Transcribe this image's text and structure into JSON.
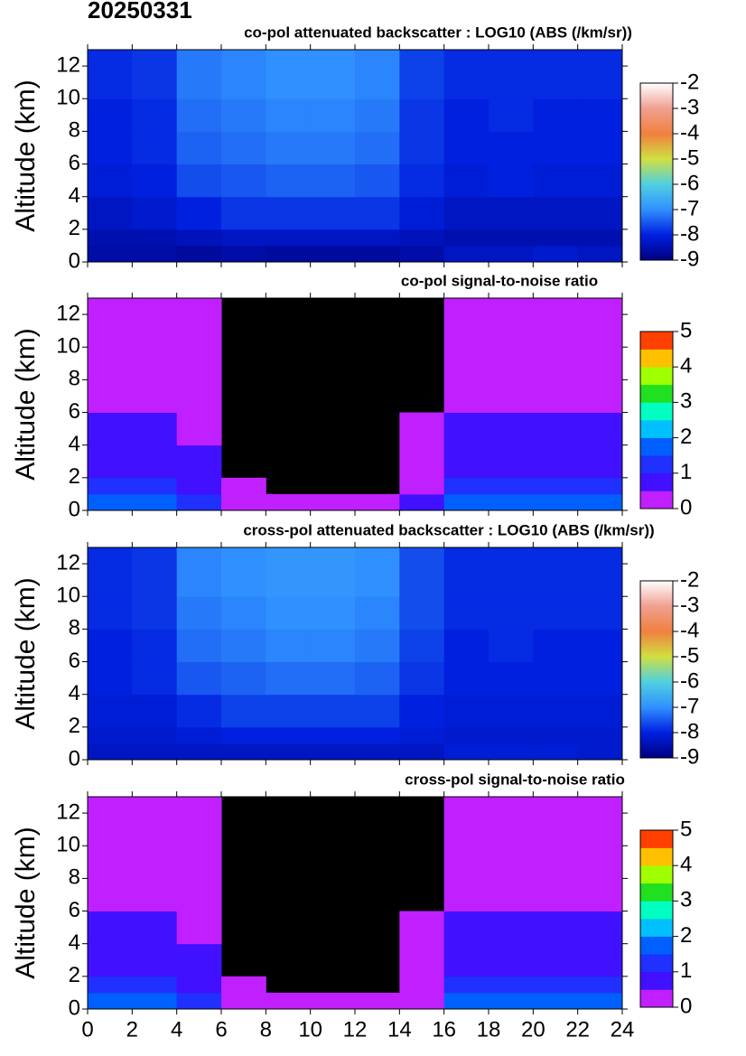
{
  "title": "20250331",
  "chart_data": [
    {
      "type": "heatmap",
      "title": "co-pol attenuated backscatter : LOG10 (ABS (/km/sr))",
      "ylabel": "Altitude (km)",
      "xlim": [
        0,
        24
      ],
      "xticks": [
        0,
        2,
        4,
        6,
        8,
        10,
        12,
        14,
        16,
        18,
        20,
        22,
        24
      ],
      "show_xtick_labels": false,
      "ylim": [
        0,
        13
      ],
      "yticks": [
        0,
        2,
        4,
        6,
        8,
        10,
        12
      ],
      "xbins": [
        0,
        2,
        4,
        6,
        8,
        10,
        12,
        14,
        16,
        18,
        20,
        22,
        24
      ],
      "ybins": [
        0,
        1,
        2,
        4,
        6,
        8,
        10,
        13
      ],
      "z": [
        [
          -8.6,
          -8.6,
          -8.7,
          -8.6,
          -8.7,
          -8.7,
          -8.7,
          -8.6,
          -8.3,
          -8.3,
          -8.2,
          -8.3
        ],
        [
          -8.5,
          -8.5,
          -8.4,
          -8.3,
          -8.3,
          -8.3,
          -8.3,
          -8.4,
          -8.5,
          -8.5,
          -8.5,
          -8.5
        ],
        [
          -8.3,
          -8.2,
          -8.0,
          -7.8,
          -7.8,
          -7.8,
          -7.8,
          -8.1,
          -8.3,
          -8.3,
          -8.3,
          -8.3
        ],
        [
          -8.1,
          -8.0,
          -7.6,
          -7.5,
          -7.4,
          -7.4,
          -7.5,
          -7.9,
          -8.1,
          -8.0,
          -8.1,
          -8.1
        ],
        [
          -8.0,
          -7.9,
          -7.4,
          -7.3,
          -7.2,
          -7.2,
          -7.3,
          -7.8,
          -8.0,
          -8.0,
          -8.0,
          -8.0
        ],
        [
          -8.0,
          -7.9,
          -7.3,
          -7.2,
          -7.1,
          -7.1,
          -7.2,
          -7.8,
          -8.0,
          -7.9,
          -8.0,
          -8.0
        ],
        [
          -7.9,
          -7.8,
          -7.2,
          -7.1,
          -7.0,
          -7.0,
          -7.1,
          -7.7,
          -7.9,
          -7.9,
          -7.9,
          -7.9
        ]
      ],
      "colorbar": {
        "lim": [
          -9,
          -2
        ],
        "ticks": [
          -9,
          -8,
          -7,
          -6,
          -5,
          -4,
          -3,
          -2
        ],
        "discrete": false,
        "colors": [
          "#000080",
          "#0020e0",
          "#3090ff",
          "#50d0e0",
          "#d0e040",
          "#f08040",
          "#f0a090",
          "#ffffff"
        ]
      }
    },
    {
      "type": "heatmap",
      "title": "co-pol signal-to-noise ratio",
      "ylabel": "Altitude (km)",
      "xlim": [
        0,
        24
      ],
      "xticks": [
        0,
        2,
        4,
        6,
        8,
        10,
        12,
        14,
        16,
        18,
        20,
        22,
        24
      ],
      "show_xtick_labels": false,
      "ylim": [
        0,
        13
      ],
      "yticks": [
        0,
        2,
        4,
        6,
        8,
        10,
        12
      ],
      "xbins": [
        0,
        2,
        4,
        6,
        8,
        10,
        12,
        14,
        16,
        18,
        20,
        22,
        24
      ],
      "ybins": [
        0,
        1,
        2,
        4,
        6,
        8,
        10,
        13
      ],
      "z": [
        [
          1.6,
          1.6,
          1.2,
          0.4,
          0.3,
          0.3,
          0.3,
          0.5,
          1.6,
          1.7,
          1.7,
          1.7
        ],
        [
          1.1,
          1.1,
          0.8,
          0.3,
          null,
          null,
          null,
          0.3,
          1.1,
          1.1,
          1.1,
          1.1
        ],
        [
          0.9,
          0.9,
          0.6,
          null,
          null,
          null,
          null,
          0.2,
          0.9,
          0.9,
          0.9,
          0.9
        ],
        [
          0.5,
          0.5,
          0.4,
          null,
          null,
          null,
          null,
          0.2,
          0.5,
          0.5,
          0.5,
          0.5
        ],
        [
          0.3,
          0.3,
          0.2,
          null,
          null,
          null,
          null,
          null,
          0.3,
          0.3,
          0.3,
          0.3
        ],
        [
          0.3,
          0.3,
          0.2,
          null,
          null,
          null,
          null,
          null,
          0.3,
          0.3,
          0.3,
          0.3
        ],
        [
          0.2,
          0.2,
          0.2,
          null,
          null,
          null,
          null,
          null,
          0.2,
          0.2,
          0.2,
          0.2
        ]
      ],
      "colorbar": {
        "lim": [
          0,
          5
        ],
        "ticks": [
          0,
          1,
          2,
          3,
          4,
          5
        ],
        "discrete": true,
        "colors": [
          "#c020ff",
          "#4010ff",
          "#2030ff",
          "#0060ff",
          "#00c0ff",
          "#00ffc0",
          "#20e020",
          "#a0ff00",
          "#ffc000",
          "#ff4000"
        ]
      }
    },
    {
      "type": "heatmap",
      "title": "cross-pol attenuated backscatter : LOG10 (ABS (/km/sr))",
      "ylabel": "Altitude (km)",
      "xlim": [
        0,
        24
      ],
      "xticks": [
        0,
        2,
        4,
        6,
        8,
        10,
        12,
        14,
        16,
        18,
        20,
        22,
        24
      ],
      "show_xtick_labels": false,
      "ylim": [
        0,
        13
      ],
      "yticks": [
        0,
        2,
        4,
        6,
        8,
        10,
        12
      ],
      "xbins": [
        0,
        2,
        4,
        6,
        8,
        10,
        12,
        14,
        16,
        18,
        20,
        22,
        24
      ],
      "ybins": [
        0,
        1,
        2,
        4,
        6,
        8,
        10,
        13
      ],
      "z": [
        [
          -8.3,
          -8.3,
          -8.3,
          -8.3,
          -8.3,
          -8.3,
          -8.3,
          -8.3,
          -8.1,
          -8.1,
          -8.1,
          -8.2
        ],
        [
          -8.2,
          -8.2,
          -8.1,
          -8.0,
          -8.0,
          -8.0,
          -8.0,
          -8.1,
          -8.2,
          -8.2,
          -8.2,
          -8.2
        ],
        [
          -8.1,
          -8.1,
          -7.9,
          -7.7,
          -7.7,
          -7.7,
          -7.7,
          -8.0,
          -8.1,
          -8.1,
          -8.1,
          -8.1
        ],
        [
          -8.0,
          -7.9,
          -7.5,
          -7.4,
          -7.3,
          -7.3,
          -7.4,
          -7.8,
          -8.0,
          -8.0,
          -8.0,
          -8.0
        ],
        [
          -8.0,
          -7.9,
          -7.3,
          -7.2,
          -7.1,
          -7.1,
          -7.2,
          -7.7,
          -8.0,
          -7.9,
          -8.0,
          -8.0
        ],
        [
          -7.9,
          -7.8,
          -7.2,
          -7.1,
          -7.0,
          -7.0,
          -7.1,
          -7.6,
          -7.9,
          -7.9,
          -7.9,
          -7.9
        ],
        [
          -7.9,
          -7.8,
          -7.1,
          -7.0,
          -6.9,
          -6.9,
          -7.0,
          -7.6,
          -7.9,
          -7.9,
          -7.9,
          -7.9
        ]
      ],
      "colorbar": {
        "lim": [
          -9,
          -2
        ],
        "ticks": [
          -9,
          -8,
          -7,
          -6,
          -5,
          -4,
          -3,
          -2
        ],
        "discrete": false,
        "colors": [
          "#000080",
          "#0020e0",
          "#3090ff",
          "#50d0e0",
          "#d0e040",
          "#f08040",
          "#f0a090",
          "#ffffff"
        ]
      }
    },
    {
      "type": "heatmap",
      "title": "cross-pol signal-to-noise ratio",
      "ylabel": "Altitude (km)",
      "xlim": [
        0,
        24
      ],
      "xticks": [
        0,
        2,
        4,
        6,
        8,
        10,
        12,
        14,
        16,
        18,
        20,
        22,
        24
      ],
      "show_xtick_labels": true,
      "ylim": [
        0,
        13
      ],
      "yticks": [
        0,
        2,
        4,
        6,
        8,
        10,
        12
      ],
      "xbins": [
        0,
        2,
        4,
        6,
        8,
        10,
        12,
        14,
        16,
        18,
        20,
        22,
        24
      ],
      "ybins": [
        0,
        1,
        2,
        4,
        6,
        8,
        10,
        13
      ],
      "z": [
        [
          1.5,
          1.5,
          1.1,
          0.3,
          0.2,
          0.2,
          0.2,
          0.4,
          1.5,
          1.5,
          1.5,
          1.5
        ],
        [
          1.1,
          1.1,
          0.8,
          0.3,
          null,
          null,
          null,
          0.3,
          1.1,
          1.1,
          1.1,
          1.1
        ],
        [
          0.8,
          0.8,
          0.6,
          null,
          null,
          null,
          null,
          0.2,
          0.8,
          0.8,
          0.8,
          0.8
        ],
        [
          0.5,
          0.5,
          0.4,
          null,
          null,
          null,
          null,
          0.2,
          0.5,
          0.5,
          0.5,
          0.5
        ],
        [
          0.3,
          0.3,
          0.2,
          null,
          null,
          null,
          null,
          null,
          0.3,
          0.3,
          0.3,
          0.3
        ],
        [
          0.3,
          0.3,
          0.2,
          null,
          null,
          null,
          null,
          null,
          0.3,
          0.3,
          0.3,
          0.3
        ],
        [
          0.2,
          0.2,
          0.2,
          null,
          null,
          null,
          null,
          null,
          0.2,
          0.2,
          0.2,
          0.2
        ]
      ],
      "colorbar": {
        "lim": [
          0,
          5
        ],
        "ticks": [
          0,
          1,
          2,
          3,
          4,
          5
        ],
        "discrete": true,
        "colors": [
          "#c020ff",
          "#4010ff",
          "#2030ff",
          "#0060ff",
          "#00c0ff",
          "#00ffc0",
          "#20e020",
          "#a0ff00",
          "#ffc000",
          "#ff4000"
        ]
      }
    }
  ]
}
